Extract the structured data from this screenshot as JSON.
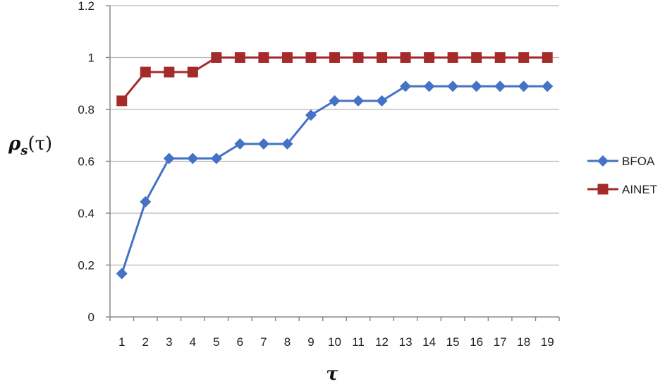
{
  "chart_data": {
    "type": "line",
    "title": "",
    "xlabel": "τ",
    "ylabel": {
      "main": "ρ",
      "sub": "s",
      "arg": "(τ)"
    },
    "categories": [
      "1",
      "2",
      "3",
      "4",
      "5",
      "6",
      "7",
      "8",
      "9",
      "10",
      "11",
      "12",
      "13",
      "14",
      "15",
      "16",
      "17",
      "18",
      "19"
    ],
    "y_ticks": [
      "0",
      "0.2",
      "0.4",
      "0.6",
      "0.8",
      "1",
      "1.2"
    ],
    "ylim": [
      0,
      1.2
    ],
    "grid": "horizontal",
    "legend_position": "right",
    "series": [
      {
        "name": "BFOA",
        "color": "#4472c4",
        "marker": "diamond",
        "values": [
          0.167,
          0.444,
          0.611,
          0.611,
          0.611,
          0.667,
          0.667,
          0.667,
          0.778,
          0.833,
          0.833,
          0.833,
          0.889,
          0.889,
          0.889,
          0.889,
          0.889,
          0.889,
          0.889
        ]
      },
      {
        "name": "AINET",
        "color": "#a52a2a",
        "marker": "square",
        "values": [
          0.833,
          0.944,
          0.944,
          0.944,
          1,
          1,
          1,
          1,
          1,
          1,
          1,
          1,
          1,
          1,
          1,
          1,
          1,
          1,
          1
        ]
      }
    ]
  }
}
